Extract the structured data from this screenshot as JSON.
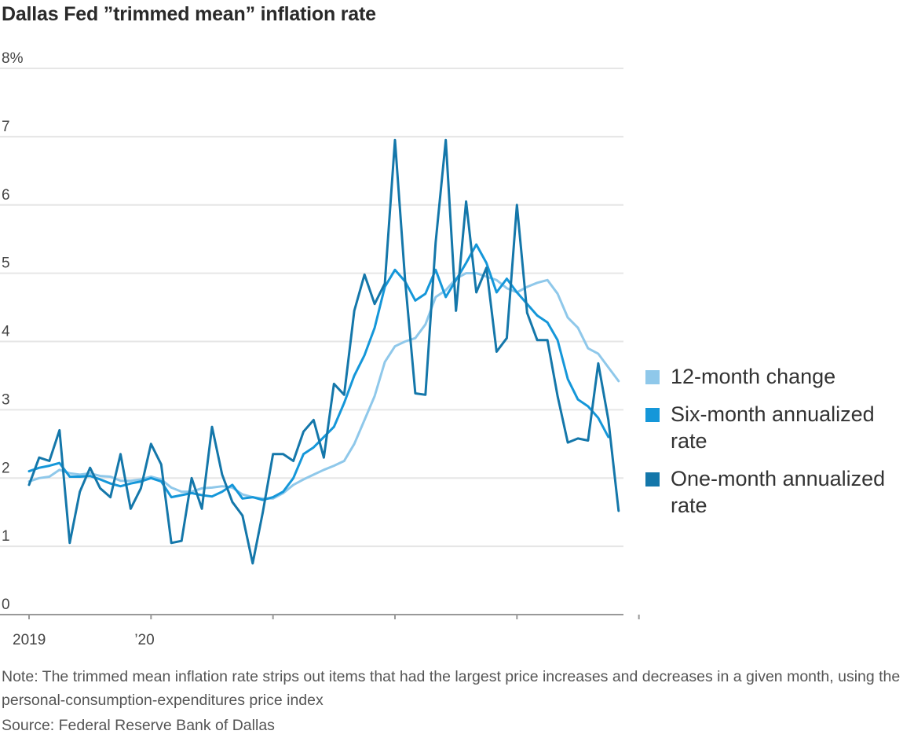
{
  "title": "Dallas Fed ”trimmed mean” inflation rate",
  "note": "Note: The trimmed mean inflation rate strips out items that had the largest price increases and decreases in a given month, using the personal-consumption-expenditures price index",
  "source": "Source: Federal Reserve Bank of Dallas",
  "chart_data": {
    "type": "line",
    "title": "Dallas Fed ”trimmed mean” inflation rate",
    "xlabel": "",
    "ylabel": "",
    "ylim": [
      0,
      8
    ],
    "y_ticks": [
      0,
      1,
      2,
      3,
      4,
      5,
      6,
      7,
      8
    ],
    "y_tick_labels": [
      "0",
      "1",
      "2",
      "3",
      "4",
      "5",
      "6",
      "7",
      "8%"
    ],
    "x_start": "2019-01",
    "x_tick_labels": [
      {
        "label": "2019",
        "month_index": 0
      },
      {
        "label": "’20",
        "month_index": 12
      }
    ],
    "x_minor_ticks": [
      0,
      12,
      24,
      36,
      48,
      60
    ],
    "legend_position": "right",
    "series": [
      {
        "name": "12-month change",
        "color": "#8fc8ea",
        "values": [
          1.95,
          2.0,
          2.02,
          2.12,
          2.07,
          2.05,
          2.07,
          2.03,
          2.02,
          1.96,
          1.96,
          1.98,
          2.02,
          1.98,
          1.86,
          1.8,
          1.8,
          1.85,
          1.86,
          1.88,
          1.86,
          1.76,
          1.72,
          1.7,
          1.7,
          1.78,
          1.9,
          1.98,
          2.05,
          2.12,
          2.18,
          2.25,
          2.5,
          2.85,
          3.2,
          3.7,
          3.93,
          4.0,
          4.05,
          4.25,
          4.65,
          4.75,
          4.92,
          5.0,
          5.0,
          4.95,
          4.9,
          4.78,
          4.72,
          4.8,
          4.86,
          4.9,
          4.7,
          4.35,
          4.2,
          3.9,
          3.82,
          3.62,
          3.42
        ]
      },
      {
        "name": "Six-month annualized rate",
        "color": "#1597d9",
        "values": [
          2.1,
          2.15,
          2.18,
          2.22,
          2.02,
          2.02,
          2.03,
          1.98,
          1.92,
          1.88,
          1.92,
          1.95,
          2.0,
          1.95,
          1.72,
          1.75,
          1.78,
          1.75,
          1.73,
          1.8,
          1.9,
          1.7,
          1.72,
          1.68,
          1.72,
          1.8,
          2.0,
          2.35,
          2.45,
          2.6,
          2.75,
          3.1,
          3.5,
          3.8,
          4.2,
          4.8,
          5.05,
          4.88,
          4.6,
          4.7,
          5.05,
          4.65,
          4.9,
          5.15,
          5.42,
          5.15,
          4.72,
          4.92,
          4.72,
          4.55,
          4.38,
          4.28,
          4.02,
          3.45,
          3.15,
          3.05,
          2.88,
          2.6
        ]
      },
      {
        "name": "One-month annualized rate",
        "color": "#1477aa",
        "values": [
          1.9,
          2.3,
          2.25,
          2.7,
          1.05,
          1.8,
          2.15,
          1.85,
          1.72,
          2.35,
          1.55,
          1.85,
          2.5,
          2.2,
          1.05,
          1.08,
          2.0,
          1.55,
          2.75,
          2.05,
          1.65,
          1.45,
          0.75,
          1.5,
          2.35,
          2.35,
          2.25,
          2.68,
          2.85,
          2.3,
          3.38,
          3.22,
          4.45,
          4.98,
          4.55,
          4.85,
          6.95,
          4.9,
          3.24,
          3.22,
          5.45,
          6.95,
          4.45,
          6.05,
          4.72,
          5.08,
          3.85,
          4.05,
          6.0,
          4.42,
          4.02,
          4.02,
          3.2,
          2.52,
          2.58,
          2.55,
          3.68,
          2.85,
          1.52
        ]
      }
    ]
  }
}
